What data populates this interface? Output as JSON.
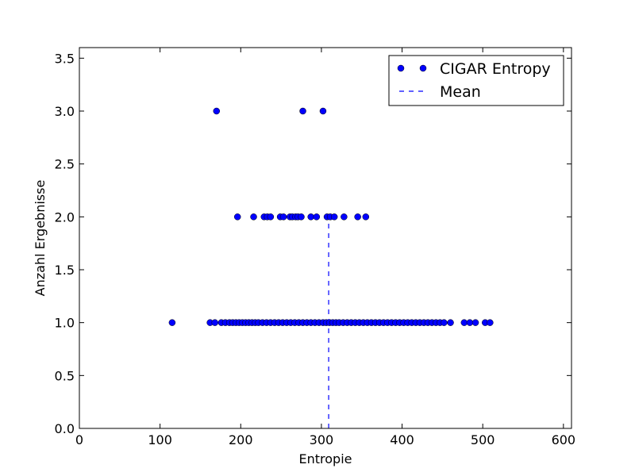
{
  "chart_data": {
    "type": "scatter",
    "xlabel": "Entropie",
    "ylabel": "Anzahl Ergebnisse",
    "xlim": [
      0,
      610
    ],
    "ylim": [
      0,
      3.6
    ],
    "xticks": [
      0,
      100,
      200,
      300,
      400,
      500,
      600
    ],
    "yticks": [
      0.0,
      0.5,
      1.0,
      1.5,
      2.0,
      2.5,
      3.0,
      3.5
    ],
    "ytick_labels": [
      "0.0",
      "0.5",
      "1.0",
      "1.5",
      "2.0",
      "2.5",
      "3.0",
      "3.5"
    ],
    "grid": false,
    "legend_position": "top-right",
    "series": [
      {
        "name": "CIGAR Entropy",
        "marker": "circle",
        "color": "#0000ff",
        "points": [
          [
            170,
            3
          ],
          [
            277,
            3
          ],
          [
            302,
            3
          ],
          [
            196,
            2
          ],
          [
            216,
            2
          ],
          [
            229,
            2
          ],
          [
            233,
            2
          ],
          [
            237,
            2
          ],
          [
            249,
            2
          ],
          [
            253,
            2
          ],
          [
            261,
            2
          ],
          [
            264,
            2
          ],
          [
            268,
            2
          ],
          [
            271,
            2
          ],
          [
            275,
            2
          ],
          [
            287,
            2
          ],
          [
            294,
            2
          ],
          [
            307,
            2
          ],
          [
            311,
            2
          ],
          [
            316,
            2
          ],
          [
            328,
            2
          ],
          [
            345,
            2
          ],
          [
            355,
            2
          ],
          [
            115,
            1
          ],
          [
            162,
            1
          ],
          [
            168,
            1
          ],
          [
            176,
            1
          ],
          [
            181,
            1
          ],
          [
            186,
            1
          ],
          [
            190,
            1
          ],
          [
            194,
            1
          ],
          [
            198,
            1
          ],
          [
            202,
            1
          ],
          [
            206,
            1
          ],
          [
            210,
            1
          ],
          [
            214,
            1
          ],
          [
            218,
            1
          ],
          [
            222,
            1
          ],
          [
            227,
            1
          ],
          [
            232,
            1
          ],
          [
            237,
            1
          ],
          [
            242,
            1
          ],
          [
            247,
            1
          ],
          [
            252,
            1
          ],
          [
            257,
            1
          ],
          [
            262,
            1
          ],
          [
            267,
            1
          ],
          [
            272,
            1
          ],
          [
            277,
            1
          ],
          [
            282,
            1
          ],
          [
            287,
            1
          ],
          [
            292,
            1
          ],
          [
            297,
            1
          ],
          [
            302,
            1
          ],
          [
            306,
            1
          ],
          [
            310,
            1
          ],
          [
            314,
            1
          ],
          [
            318,
            1
          ],
          [
            322,
            1
          ],
          [
            327,
            1
          ],
          [
            332,
            1
          ],
          [
            337,
            1
          ],
          [
            342,
            1
          ],
          [
            347,
            1
          ],
          [
            352,
            1
          ],
          [
            357,
            1
          ],
          [
            362,
            1
          ],
          [
            367,
            1
          ],
          [
            372,
            1
          ],
          [
            377,
            1
          ],
          [
            382,
            1
          ],
          [
            387,
            1
          ],
          [
            392,
            1
          ],
          [
            397,
            1
          ],
          [
            402,
            1
          ],
          [
            407,
            1
          ],
          [
            412,
            1
          ],
          [
            417,
            1
          ],
          [
            422,
            1
          ],
          [
            427,
            1
          ],
          [
            432,
            1
          ],
          [
            437,
            1
          ],
          [
            442,
            1
          ],
          [
            447,
            1
          ],
          [
            452,
            1
          ],
          [
            460,
            1
          ],
          [
            477,
            1
          ],
          [
            484,
            1
          ],
          [
            491,
            1
          ],
          [
            503,
            1
          ],
          [
            509,
            1
          ]
        ]
      },
      {
        "name": "Mean",
        "style": "dashed",
        "color": "#0000ff",
        "x": 309,
        "y_range": [
          0,
          2
        ]
      }
    ]
  }
}
